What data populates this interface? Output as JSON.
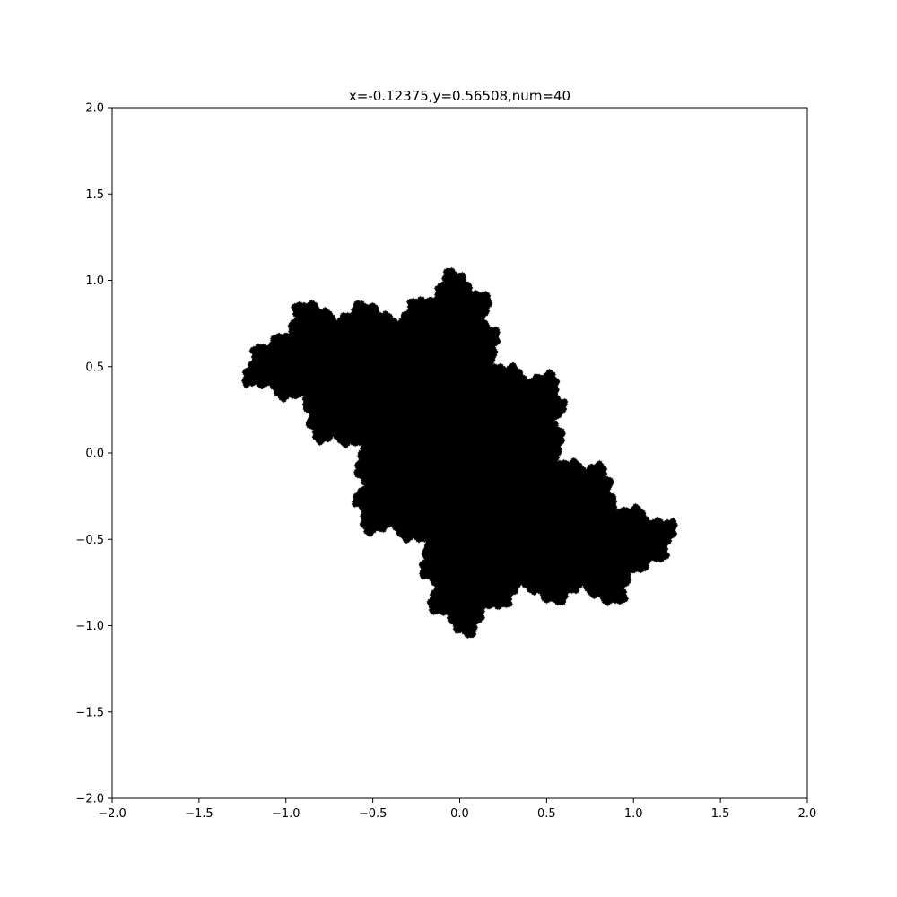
{
  "chart_data": {
    "type": "scatter",
    "title": "x=-0.12375,y=0.56508,num=40",
    "xlabel": "",
    "ylabel": "",
    "xlim": [
      -2.0,
      2.0
    ],
    "ylim": [
      -2.0,
      2.0
    ],
    "x_ticks": [
      "−2.0",
      "−1.5",
      "−1.0",
      "−0.5",
      "0.0",
      "0.5",
      "1.0",
      "1.5",
      "2.0"
    ],
    "y_ticks": [
      "−2.0",
      "−1.5",
      "−1.0",
      "−0.5",
      "0.0",
      "0.5",
      "1.0",
      "1.5",
      "2.0"
    ],
    "grid": false,
    "legend": "none",
    "point_color": "#000000",
    "fractal": {
      "kind": "julia-set",
      "c": [
        -0.12375,
        0.56508
      ],
      "iterations": 40
    }
  }
}
